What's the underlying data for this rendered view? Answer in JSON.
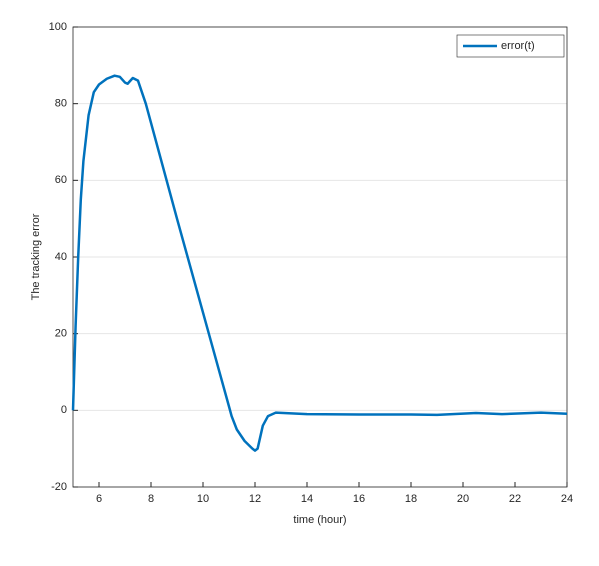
{
  "chart_data": {
    "type": "line",
    "xlabel": "time (hour)",
    "ylabel": "The tracking error",
    "x": [
      5,
      5.1,
      5.2,
      5.3,
      5.4,
      5.6,
      5.8,
      6,
      6.3,
      6.6,
      6.8,
      7.0,
      7.1,
      7.3,
      7.5,
      7.8,
      8,
      9,
      10,
      11,
      11.1,
      11.3,
      11.6,
      11.9,
      12.0,
      12.1,
      12.3,
      12.5,
      12.8,
      14,
      16,
      18,
      19,
      20.5,
      21.5,
      23,
      24
    ],
    "series": [
      {
        "name": "error(t)",
        "color": "#0072bd",
        "values": [
          0,
          22,
          40,
          55,
          65,
          77,
          83,
          85,
          86.5,
          87.3,
          87,
          85.5,
          85.2,
          86.7,
          86,
          80,
          75,
          50,
          25.5,
          1,
          -1.5,
          -5,
          -8,
          -10,
          -10.5,
          -10,
          -4,
          -1.5,
          -0.6,
          -1,
          -1.1,
          -1.1,
          -1.2,
          -0.7,
          -1,
          -0.6,
          -0.9
        ]
      }
    ],
    "xlim": [
      5,
      24
    ],
    "xticks": [
      6,
      8,
      10,
      12,
      14,
      16,
      18,
      20,
      22,
      24
    ],
    "ylim": [
      -20,
      100
    ],
    "yticks": [
      -20,
      0,
      20,
      40,
      60,
      80,
      100
    ],
    "grid": "y",
    "legend": "upper right"
  }
}
